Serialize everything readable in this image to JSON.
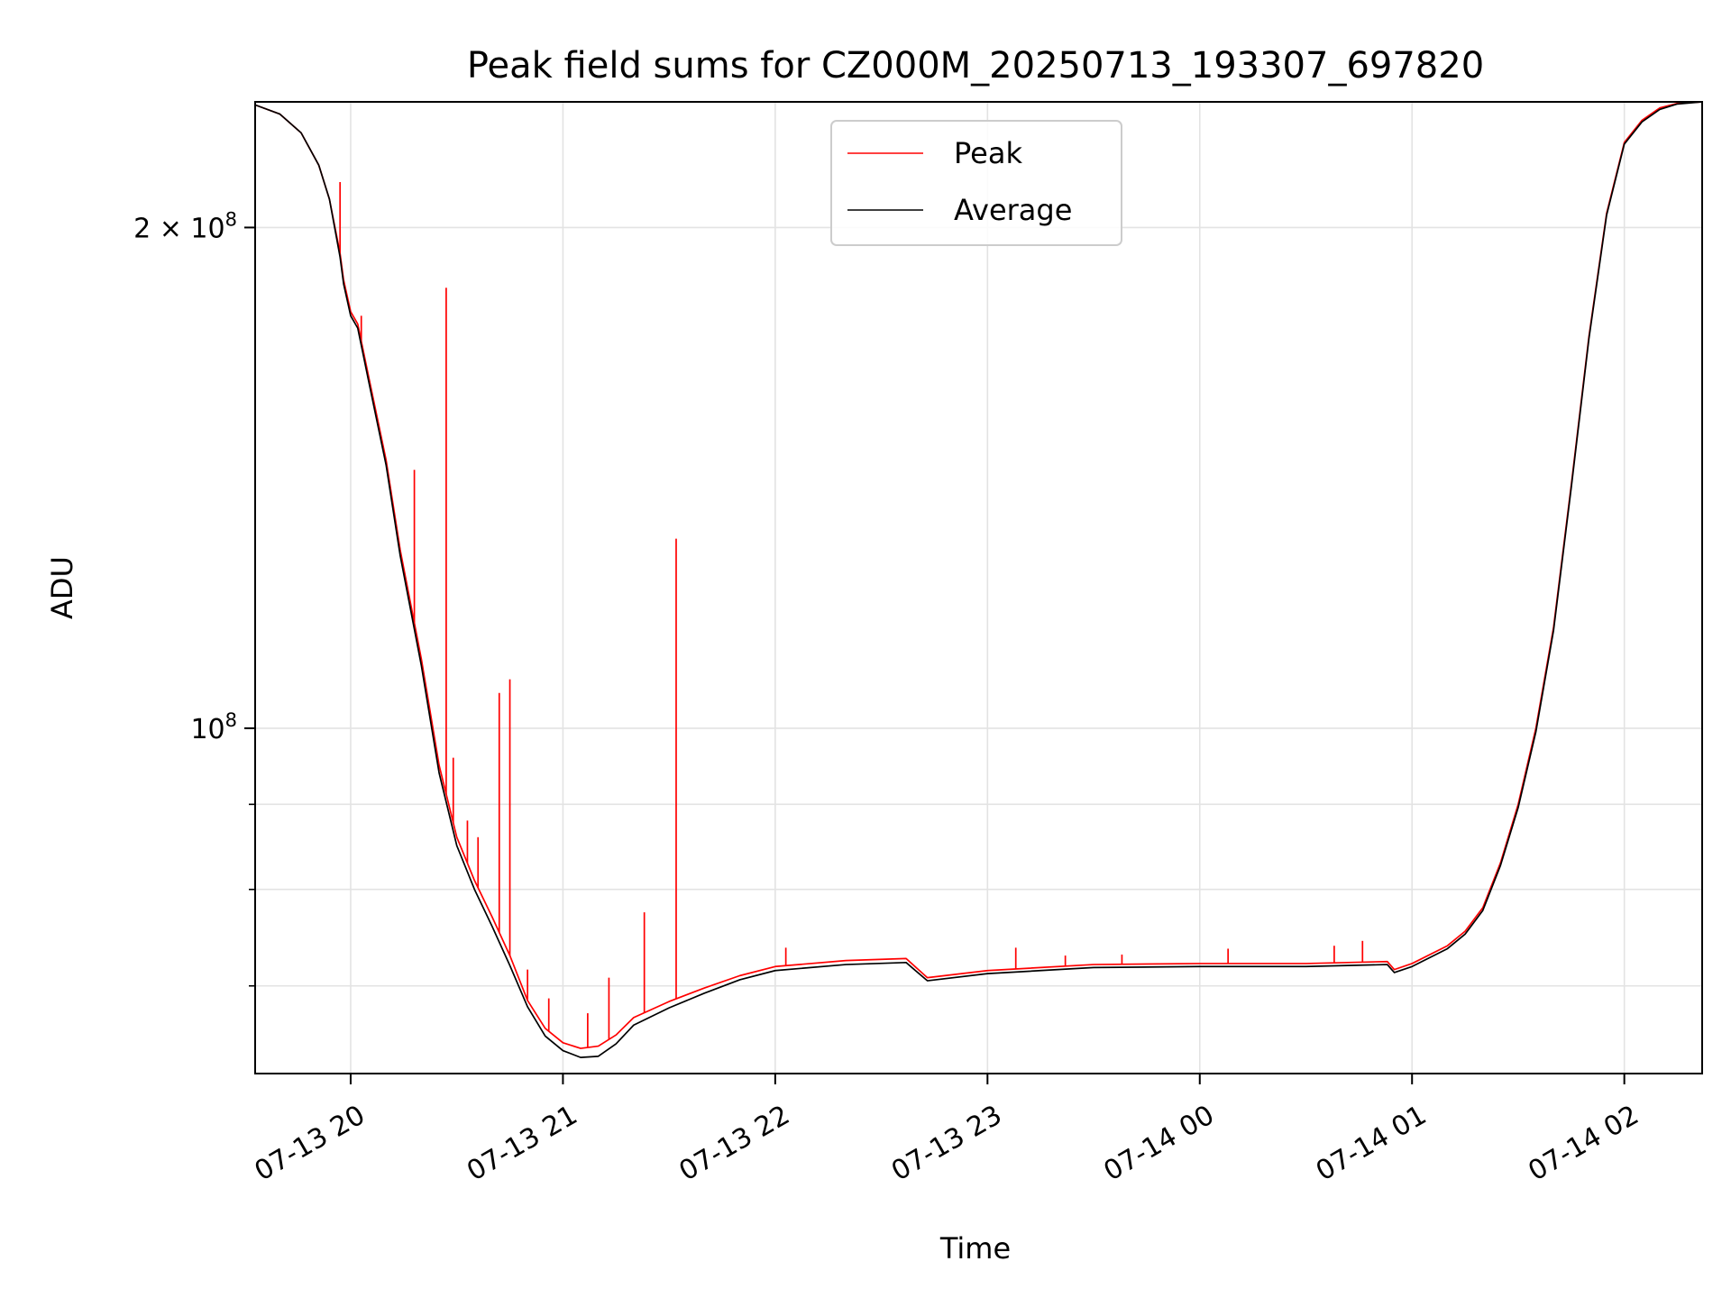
{
  "chart_data": {
    "type": "line",
    "title": "Peak field sums for CZ000M_20250713_193307_697820",
    "xlabel": "Time",
    "ylabel": "ADU",
    "yscale": "log",
    "grid": true,
    "legend_position": "upper center",
    "x_tick_labels": [
      "07-13 20",
      "07-13 21",
      "07-13 22",
      "07-13 23",
      "07-14 00",
      "07-14 01",
      "07-14 02"
    ],
    "x_tick_values": [
      "2025-07-13 20:00",
      "2025-07-13 21:00",
      "2025-07-13 22:00",
      "2025-07-13 23:00",
      "2025-07-14 00:00",
      "2025-07-14 01:00",
      "2025-07-14 02:00"
    ],
    "xlim": [
      "2025-07-13 19:33",
      "2025-07-14 02:22"
    ],
    "ylim": [
      62000000,
      238000000
    ],
    "y_ticks": [
      {
        "value": 100000000,
        "base": "10",
        "exp": "8",
        "prefix": ""
      },
      {
        "value": 200000000,
        "base": "10",
        "exp": "8",
        "prefix": "2 × "
      }
    ],
    "y_minor_ticks": [
      70000000,
      80000000,
      90000000
    ],
    "series": [
      {
        "name": "Peak",
        "color": "#ff0000",
        "x": [
          "2025-07-13 19:33",
          "2025-07-13 19:40",
          "2025-07-13 19:46",
          "2025-07-13 19:51",
          "2025-07-13 19:54",
          "2025-07-13 19:57",
          "2025-07-13 19:58",
          "2025-07-13 20:00",
          "2025-07-13 20:02",
          "2025-07-13 20:05",
          "2025-07-13 20:10",
          "2025-07-13 20:14",
          "2025-07-13 20:20",
          "2025-07-13 20:25",
          "2025-07-13 20:30",
          "2025-07-13 20:35",
          "2025-07-13 20:40",
          "2025-07-13 20:45",
          "2025-07-13 20:50",
          "2025-07-13 20:55",
          "2025-07-13 21:00",
          "2025-07-13 21:05",
          "2025-07-13 21:10",
          "2025-07-13 21:15",
          "2025-07-13 21:20",
          "2025-07-13 21:30",
          "2025-07-13 21:40",
          "2025-07-13 21:50",
          "2025-07-13 22:00",
          "2025-07-13 22:20",
          "2025-07-13 22:37",
          "2025-07-13 22:43",
          "2025-07-13 23:00",
          "2025-07-13 23:30",
          "2025-07-14 00:00",
          "2025-07-14 00:30",
          "2025-07-14 00:53",
          "2025-07-14 00:55",
          "2025-07-14 01:00",
          "2025-07-14 01:10",
          "2025-07-14 01:15",
          "2025-07-14 01:20",
          "2025-07-14 01:25",
          "2025-07-14 01:30",
          "2025-07-14 01:35",
          "2025-07-14 01:40",
          "2025-07-14 01:45",
          "2025-07-14 01:50",
          "2025-07-14 01:55",
          "2025-07-14 02:00",
          "2025-07-14 02:05",
          "2025-07-14 02:10",
          "2025-07-14 02:15",
          "2025-07-14 02:22"
        ],
        "y": [
          237000000,
          234000000,
          228000000,
          218000000,
          208000000,
          193000000,
          186000000,
          178000000,
          175000000,
          163000000,
          145000000,
          128000000,
          110000000,
          95000000,
          86000000,
          81000000,
          77000000,
          73000000,
          68600000,
          66000000,
          64700000,
          64200000,
          64400000,
          65400000,
          67000000,
          68500000,
          69800000,
          71000000,
          71900000,
          72500000,
          72700000,
          70800000,
          71500000,
          72100000,
          72200000,
          72200000,
          72400000,
          71600000,
          72200000,
          74000000,
          75500000,
          78000000,
          83000000,
          90000000,
          100000000,
          115000000,
          140000000,
          172000000,
          204000000,
          225000000,
          232000000,
          236000000,
          237500000,
          238000000
        ],
        "spikes": [
          {
            "x": "2025-07-13 19:57",
            "y": 213000000
          },
          {
            "x": "2025-07-13 20:03",
            "y": 177000000
          },
          {
            "x": "2025-07-13 20:18",
            "y": 143000000
          },
          {
            "x": "2025-07-13 20:27",
            "y": 184000000
          },
          {
            "x": "2025-07-13 20:29",
            "y": 96000000
          },
          {
            "x": "2025-07-13 20:33",
            "y": 88000000
          },
          {
            "x": "2025-07-13 20:36",
            "y": 86000000
          },
          {
            "x": "2025-07-13 20:42",
            "y": 105000000
          },
          {
            "x": "2025-07-13 20:45",
            "y": 107000000
          },
          {
            "x": "2025-07-13 20:50",
            "y": 71600000
          },
          {
            "x": "2025-07-13 20:56",
            "y": 68800000
          },
          {
            "x": "2025-07-13 21:07",
            "y": 67400000
          },
          {
            "x": "2025-07-13 21:13",
            "y": 70800000
          },
          {
            "x": "2025-07-13 21:23",
            "y": 77500000
          },
          {
            "x": "2025-07-13 21:32",
            "y": 130000000
          },
          {
            "x": "2025-07-13 22:03",
            "y": 73800000
          },
          {
            "x": "2025-07-13 23:08",
            "y": 73800000
          },
          {
            "x": "2025-07-13 23:22",
            "y": 73000000
          },
          {
            "x": "2025-07-13 23:38",
            "y": 73100000
          },
          {
            "x": "2025-07-14 00:08",
            "y": 73700000
          },
          {
            "x": "2025-07-14 00:38",
            "y": 74000000
          },
          {
            "x": "2025-07-14 00:46",
            "y": 74500000
          }
        ]
      },
      {
        "name": "Average",
        "color": "#000000",
        "x": [
          "2025-07-13 19:33",
          "2025-07-13 19:40",
          "2025-07-13 19:46",
          "2025-07-13 19:51",
          "2025-07-13 19:54",
          "2025-07-13 19:57",
          "2025-07-13 19:58",
          "2025-07-13 20:00",
          "2025-07-13 20:02",
          "2025-07-13 20:05",
          "2025-07-13 20:10",
          "2025-07-13 20:14",
          "2025-07-13 20:20",
          "2025-07-13 20:25",
          "2025-07-13 20:30",
          "2025-07-13 20:35",
          "2025-07-13 20:40",
          "2025-07-13 20:45",
          "2025-07-13 20:50",
          "2025-07-13 20:55",
          "2025-07-13 21:00",
          "2025-07-13 21:05",
          "2025-07-13 21:10",
          "2025-07-13 21:15",
          "2025-07-13 21:20",
          "2025-07-13 21:30",
          "2025-07-13 21:40",
          "2025-07-13 21:50",
          "2025-07-13 22:00",
          "2025-07-13 22:20",
          "2025-07-13 22:37",
          "2025-07-13 22:43",
          "2025-07-13 23:00",
          "2025-07-13 23:30",
          "2025-07-14 00:00",
          "2025-07-14 00:30",
          "2025-07-14 00:53",
          "2025-07-14 00:55",
          "2025-07-14 01:00",
          "2025-07-14 01:10",
          "2025-07-14 01:15",
          "2025-07-14 01:20",
          "2025-07-14 01:25",
          "2025-07-14 01:30",
          "2025-07-14 01:35",
          "2025-07-14 01:40",
          "2025-07-14 01:45",
          "2025-07-14 01:50",
          "2025-07-14 01:55",
          "2025-07-14 02:00",
          "2025-07-14 02:05",
          "2025-07-14 02:10",
          "2025-07-14 02:15",
          "2025-07-14 02:22"
        ],
        "y": [
          237000000,
          234000000,
          228000000,
          218000000,
          208000000,
          192000000,
          185000000,
          177000000,
          174000000,
          162000000,
          144000000,
          127000000,
          109000000,
          94000000,
          85000000,
          80000000,
          76000000,
          72000000,
          68000000,
          65300000,
          64000000,
          63400000,
          63500000,
          64600000,
          66300000,
          67900000,
          69300000,
          70600000,
          71500000,
          72100000,
          72300000,
          70500000,
          71200000,
          71800000,
          71900000,
          71900000,
          72100000,
          71300000,
          71900000,
          73700000,
          75200000,
          77700000,
          82700000,
          89600000,
          99500000,
          114500000,
          139500000,
          171500000,
          203500000,
          224500000,
          231500000,
          235500000,
          237300000,
          238000000
        ]
      }
    ]
  }
}
